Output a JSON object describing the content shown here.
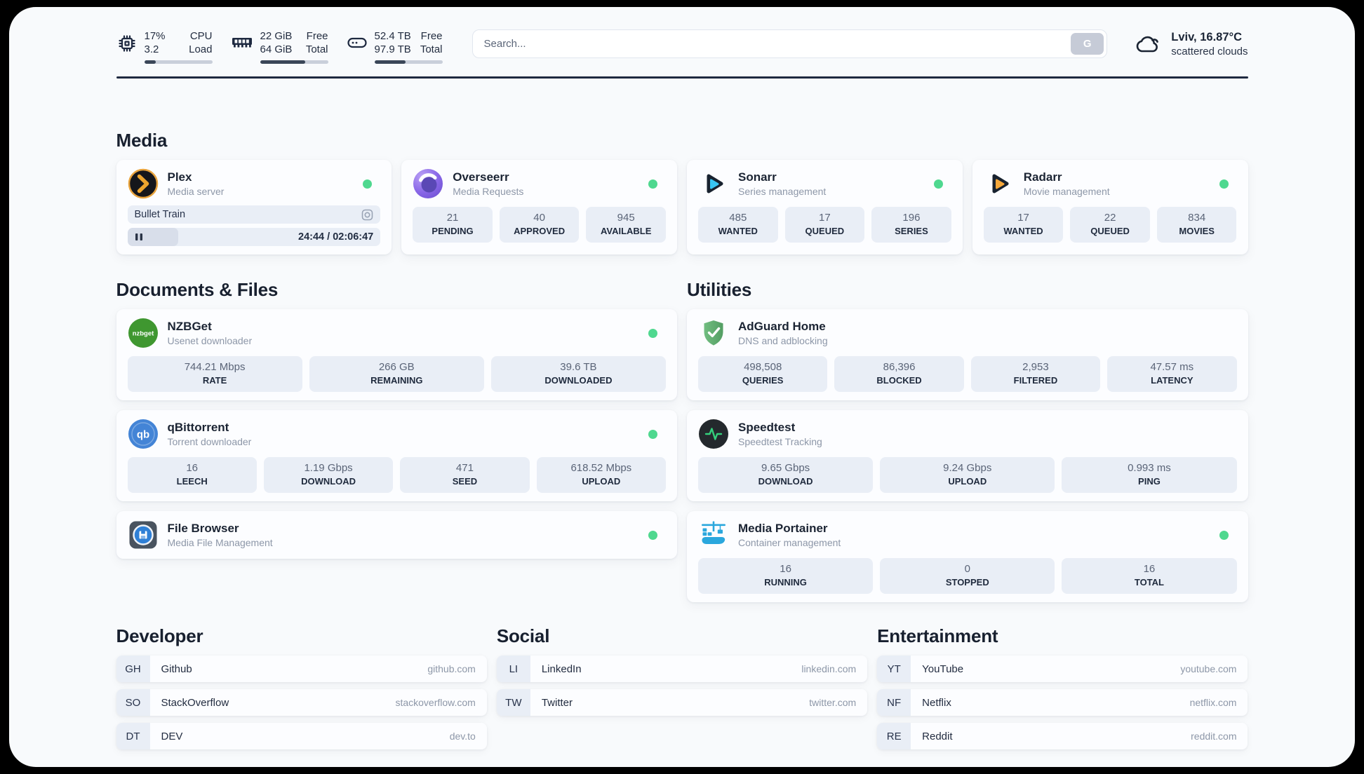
{
  "colors": {
    "status_online": "#4fd88f",
    "panel_background": "#f8fafc",
    "stat_box_background": "#e9eef6",
    "progress_fill": "#3a4658"
  },
  "topbar": {
    "monitors": [
      {
        "icon": "cpu-icon",
        "rows": [
          {
            "value": "17%",
            "label": "CPU"
          },
          {
            "value": "3.2",
            "label": "Load"
          }
        ],
        "progress_percent": 17
      },
      {
        "icon": "ram-icon",
        "rows": [
          {
            "value": "22 GiB",
            "label": "Free"
          },
          {
            "value": "64 GiB",
            "label": "Total"
          }
        ],
        "progress_percent": 66
      },
      {
        "icon": "disk-icon",
        "rows": [
          {
            "value": "52.4 TB",
            "label": "Free"
          },
          {
            "value": "97.9 TB",
            "label": "Total"
          }
        ],
        "progress_percent": 46
      }
    ],
    "search": {
      "placeholder": "Search...",
      "button_label": "G"
    },
    "weather": {
      "location_temp": "Lviv, 16.87°C",
      "condition": "scattered clouds"
    }
  },
  "sections": {
    "media": {
      "title": "Media",
      "apps": [
        {
          "name": "Plex",
          "subtitle": "Media server",
          "icon": "plex-icon",
          "online": true,
          "player": {
            "now_playing": "Bullet Train",
            "time": "24:44 / 02:06:47",
            "progress_percent": 20
          }
        },
        {
          "name": "Overseerr",
          "subtitle": "Media Requests",
          "icon": "overseerr-icon",
          "online": true,
          "stats": [
            {
              "value": "21",
              "label": "PENDING"
            },
            {
              "value": "40",
              "label": "APPROVED"
            },
            {
              "value": "945",
              "label": "AVAILABLE"
            }
          ]
        },
        {
          "name": "Sonarr",
          "subtitle": "Series management",
          "icon": "sonarr-icon",
          "online": true,
          "stats": [
            {
              "value": "485",
              "label": "WANTED"
            },
            {
              "value": "17",
              "label": "QUEUED"
            },
            {
              "value": "196",
              "label": "SERIES"
            }
          ]
        },
        {
          "name": "Radarr",
          "subtitle": "Movie management",
          "icon": "radarr-icon",
          "online": true,
          "stats": [
            {
              "value": "17",
              "label": "WANTED"
            },
            {
              "value": "22",
              "label": "QUEUED"
            },
            {
              "value": "834",
              "label": "MOVIES"
            }
          ]
        }
      ]
    },
    "documents": {
      "title": "Documents & Files",
      "apps": [
        {
          "name": "NZBGet",
          "subtitle": "Usenet downloader",
          "icon": "nzbget-icon",
          "online": true,
          "stats": [
            {
              "value": "744.21 Mbps",
              "label": "RATE"
            },
            {
              "value": "266 GB",
              "label": "REMAINING"
            },
            {
              "value": "39.6 TB",
              "label": "DOWNLOADED"
            }
          ]
        },
        {
          "name": "qBittorrent",
          "subtitle": "Torrent downloader",
          "icon": "qbittorrent-icon",
          "online": true,
          "stats": [
            {
              "value": "16",
              "label": "LEECH"
            },
            {
              "value": "1.19 Gbps",
              "label": "DOWNLOAD"
            },
            {
              "value": "471",
              "label": "SEED"
            },
            {
              "value": "618.52 Mbps",
              "label": "UPLOAD"
            }
          ]
        },
        {
          "name": "File Browser",
          "subtitle": "Media File Management",
          "icon": "filebrowser-icon",
          "online": true,
          "stats": []
        }
      ]
    },
    "utilities": {
      "title": "Utilities",
      "apps": [
        {
          "name": "AdGuard Home",
          "subtitle": "DNS and adblocking",
          "icon": "adguard-icon",
          "online": null,
          "stats": [
            {
              "value": "498,508",
              "label": "QUERIES"
            },
            {
              "value": "86,396",
              "label": "BLOCKED"
            },
            {
              "value": "2,953",
              "label": "FILTERED"
            },
            {
              "value": "47.57 ms",
              "label": "LATENCY"
            }
          ]
        },
        {
          "name": "Speedtest",
          "subtitle": "Speedtest Tracking",
          "icon": "speedtest-icon",
          "online": null,
          "stats": [
            {
              "value": "9.65 Gbps",
              "label": "DOWNLOAD"
            },
            {
              "value": "9.24 Gbps",
              "label": "UPLOAD"
            },
            {
              "value": "0.993 ms",
              "label": "PING"
            }
          ]
        },
        {
          "name": "Media Portainer",
          "subtitle": "Container management",
          "icon": "portainer-icon",
          "online": true,
          "stats": [
            {
              "value": "16",
              "label": "RUNNING"
            },
            {
              "value": "0",
              "label": "STOPPED"
            },
            {
              "value": "16",
              "label": "TOTAL"
            }
          ]
        }
      ]
    },
    "developer": {
      "title": "Developer",
      "links": [
        {
          "initials": "GH",
          "name": "Github",
          "url": "github.com"
        },
        {
          "initials": "SO",
          "name": "StackOverflow",
          "url": "stackoverflow.com"
        },
        {
          "initials": "DT",
          "name": "DEV",
          "url": "dev.to"
        }
      ]
    },
    "social": {
      "title": "Social",
      "links": [
        {
          "initials": "LI",
          "name": "LinkedIn",
          "url": "linkedin.com"
        },
        {
          "initials": "TW",
          "name": "Twitter",
          "url": "twitter.com"
        }
      ]
    },
    "entertainment": {
      "title": "Entertainment",
      "links": [
        {
          "initials": "YT",
          "name": "YouTube",
          "url": "youtube.com"
        },
        {
          "initials": "NF",
          "name": "Netflix",
          "url": "netflix.com"
        },
        {
          "initials": "RE",
          "name": "Reddit",
          "url": "reddit.com"
        }
      ]
    }
  }
}
